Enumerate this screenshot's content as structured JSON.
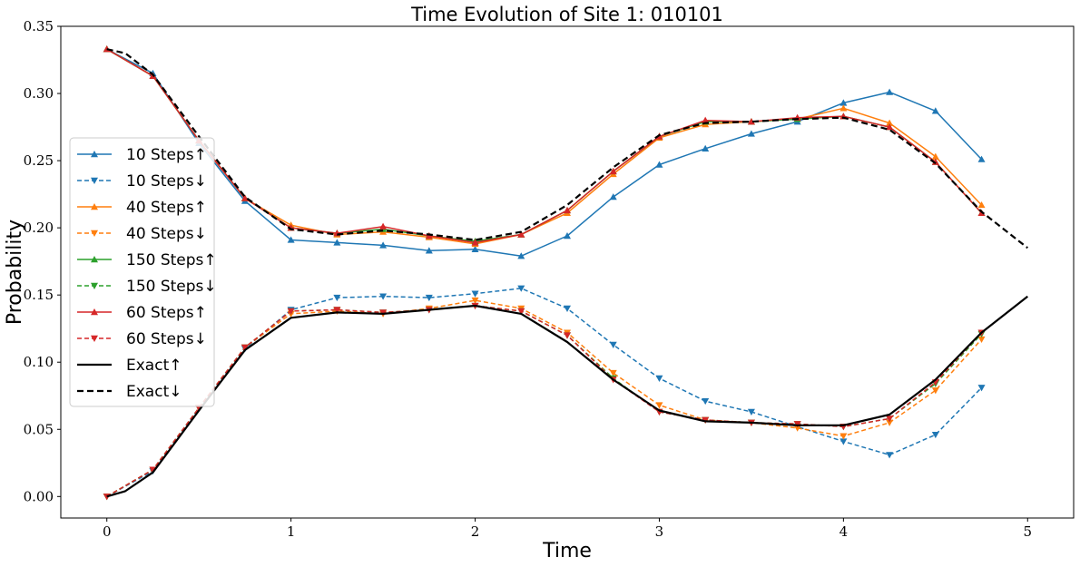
{
  "chart_data": {
    "type": "line",
    "title": "Time Evolution of Site 1: 010101",
    "xlabel": "Time",
    "ylabel": "Probability",
    "xlim": [
      -0.25,
      5.25
    ],
    "ylim": [
      -0.016,
      0.35
    ],
    "xticks": [
      0,
      1,
      2,
      3,
      4,
      5
    ],
    "xtick_labels": [
      "0",
      "1",
      "2",
      "3",
      "4",
      "5"
    ],
    "yticks": [
      0.0,
      0.05,
      0.1,
      0.15,
      0.2,
      0.25,
      0.3,
      0.35
    ],
    "ytick_labels": [
      "0.00",
      "0.05",
      "0.10",
      "0.15",
      "0.20",
      "0.25",
      "0.30",
      "0.35"
    ],
    "grid": false,
    "legend_position": "center-left",
    "series": [
      {
        "name": "10 Steps↑",
        "color": "#1f77b4",
        "dash": "solid",
        "marker": "triangle-up",
        "x": [
          0,
          0.25,
          0.5,
          0.75,
          1.0,
          1.25,
          1.5,
          1.75,
          2.0,
          2.25,
          2.5,
          2.75,
          3.0,
          3.25,
          3.5,
          3.75,
          4.0,
          4.25,
          4.5,
          4.75
        ],
        "values": [
          0.333,
          0.315,
          0.263,
          0.22,
          0.191,
          0.189,
          0.187,
          0.183,
          0.184,
          0.179,
          0.194,
          0.223,
          0.247,
          0.259,
          0.27,
          0.279,
          0.293,
          0.301,
          0.287,
          0.251
        ]
      },
      {
        "name": "10 Steps↓",
        "color": "#1f77b4",
        "dash": "dashed",
        "marker": "triangle-down",
        "x": [
          0,
          0.25,
          0.5,
          0.75,
          1.0,
          1.25,
          1.5,
          1.75,
          2.0,
          2.25,
          2.5,
          2.75,
          3.0,
          3.25,
          3.5,
          3.75,
          4.0,
          4.25,
          4.5,
          4.75
        ],
        "values": [
          0.0,
          0.019,
          0.066,
          0.11,
          0.139,
          0.148,
          0.149,
          0.148,
          0.151,
          0.155,
          0.14,
          0.113,
          0.088,
          0.071,
          0.063,
          0.052,
          0.041,
          0.031,
          0.046,
          0.081
        ]
      },
      {
        "name": "40 Steps↑",
        "color": "#ff7f0e",
        "dash": "solid",
        "marker": "triangle-up",
        "x": [
          0,
          0.25,
          0.5,
          0.75,
          1.0,
          1.25,
          1.5,
          1.75,
          2.0,
          2.25,
          2.5,
          2.75,
          3.0,
          3.25,
          3.5,
          3.75,
          4.0,
          4.25,
          4.5,
          4.75
        ],
        "values": [
          0.333,
          0.313,
          0.265,
          0.222,
          0.202,
          0.195,
          0.197,
          0.193,
          0.188,
          0.195,
          0.211,
          0.24,
          0.267,
          0.277,
          0.279,
          0.281,
          0.289,
          0.278,
          0.253,
          0.217
        ]
      },
      {
        "name": "40 Steps↓",
        "color": "#ff7f0e",
        "dash": "dashed",
        "marker": "triangle-down",
        "x": [
          0,
          0.25,
          0.5,
          0.75,
          1.0,
          1.25,
          1.5,
          1.75,
          2.0,
          2.25,
          2.5,
          2.75,
          3.0,
          3.25,
          3.5,
          3.75,
          4.0,
          4.25,
          4.5,
          4.75
        ],
        "values": [
          0.0,
          0.02,
          0.066,
          0.111,
          0.136,
          0.138,
          0.136,
          0.14,
          0.146,
          0.14,
          0.122,
          0.092,
          0.068,
          0.057,
          0.055,
          0.051,
          0.045,
          0.055,
          0.079,
          0.117
        ]
      },
      {
        "name": "150 Steps↑",
        "color": "#2ca02c",
        "dash": "solid",
        "marker": "triangle-up",
        "x": [
          0,
          0.25,
          0.5,
          0.75,
          1.0,
          1.25,
          1.5,
          1.75,
          2.0,
          2.25,
          2.5,
          2.75,
          3.0,
          3.25,
          3.5,
          3.75,
          4.0,
          4.25,
          4.5,
          4.75
        ],
        "values": [
          0.333,
          0.313,
          0.265,
          0.222,
          0.2,
          0.196,
          0.199,
          0.194,
          0.19,
          0.195,
          0.213,
          0.242,
          0.268,
          0.279,
          0.279,
          0.281,
          0.283,
          0.275,
          0.249,
          0.211
        ]
      },
      {
        "name": "150 Steps↓",
        "color": "#2ca02c",
        "dash": "dashed",
        "marker": "triangle-down",
        "x": [
          0,
          0.25,
          0.5,
          0.75,
          1.0,
          1.25,
          1.5,
          1.75,
          2.0,
          2.25,
          2.5,
          2.75,
          3.0,
          3.25,
          3.5,
          3.75,
          4.0,
          4.25,
          4.5,
          4.75
        ],
        "values": [
          0.0,
          0.02,
          0.066,
          0.111,
          0.138,
          0.139,
          0.137,
          0.139,
          0.142,
          0.138,
          0.12,
          0.088,
          0.063,
          0.057,
          0.055,
          0.054,
          0.052,
          0.058,
          0.084,
          0.121
        ]
      },
      {
        "name": "60 Steps↑",
        "color": "#d62728",
        "dash": "solid",
        "marker": "triangle-up",
        "x": [
          0,
          0.25,
          0.5,
          0.75,
          1.0,
          1.25,
          1.5,
          1.75,
          2.0,
          2.25,
          2.5,
          2.75,
          3.0,
          3.25,
          3.5,
          3.75,
          4.0,
          4.25,
          4.5,
          4.75
        ],
        "values": [
          0.333,
          0.313,
          0.265,
          0.222,
          0.2,
          0.196,
          0.201,
          0.194,
          0.189,
          0.195,
          0.213,
          0.242,
          0.268,
          0.28,
          0.279,
          0.282,
          0.283,
          0.275,
          0.249,
          0.211
        ]
      },
      {
        "name": "60 Steps↓",
        "color": "#d62728",
        "dash": "dashed",
        "marker": "triangle-down",
        "x": [
          0,
          0.25,
          0.5,
          0.75,
          1.0,
          1.25,
          1.5,
          1.75,
          2.0,
          2.25,
          2.5,
          2.75,
          3.0,
          3.25,
          3.5,
          3.75,
          4.0,
          4.25,
          4.5,
          4.75
        ],
        "values": [
          0.0,
          0.02,
          0.066,
          0.111,
          0.138,
          0.139,
          0.137,
          0.139,
          0.142,
          0.138,
          0.12,
          0.087,
          0.063,
          0.057,
          0.055,
          0.054,
          0.052,
          0.058,
          0.085,
          0.122
        ]
      },
      {
        "name": "Exact↑",
        "color": "#000000",
        "dash": "solid",
        "marker": "none",
        "x": [
          0,
          0.1,
          0.25,
          0.5,
          0.75,
          1.0,
          1.25,
          1.5,
          1.75,
          2.0,
          2.25,
          2.5,
          2.75,
          3.0,
          3.25,
          3.5,
          3.75,
          4.0,
          4.25,
          4.5,
          4.75,
          5.0
        ],
        "values": [
          0.0,
          0.004,
          0.018,
          0.064,
          0.109,
          0.133,
          0.137,
          0.136,
          0.139,
          0.142,
          0.136,
          0.115,
          0.087,
          0.064,
          0.056,
          0.055,
          0.053,
          0.053,
          0.061,
          0.087,
          0.122,
          0.149
        ]
      },
      {
        "name": "Exact↓",
        "color": "#000000",
        "dash": "dashed",
        "marker": "none",
        "x": [
          0,
          0.1,
          0.25,
          0.5,
          0.75,
          1.0,
          1.25,
          1.5,
          1.75,
          2.0,
          2.25,
          2.5,
          2.75,
          3.0,
          3.25,
          3.5,
          3.75,
          4.0,
          4.25,
          4.5,
          4.75,
          5.0
        ],
        "values": [
          0.333,
          0.33,
          0.314,
          0.268,
          0.223,
          0.199,
          0.195,
          0.198,
          0.195,
          0.191,
          0.197,
          0.217,
          0.245,
          0.269,
          0.278,
          0.279,
          0.281,
          0.282,
          0.273,
          0.248,
          0.212,
          0.185
        ]
      }
    ]
  }
}
